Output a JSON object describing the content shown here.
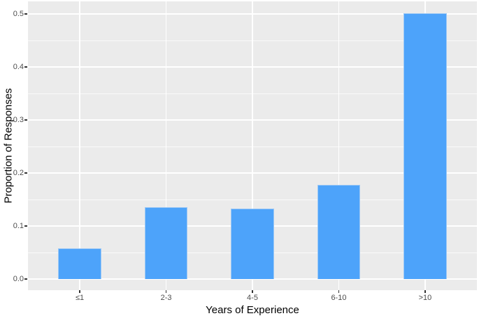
{
  "chart_data": {
    "type": "bar",
    "title": "",
    "categories": [
      "≤1",
      "2-3",
      "4-5",
      "6-10",
      ">10"
    ],
    "values": [
      0.058,
      0.135,
      0.133,
      0.178,
      0.501
    ],
    "xlabel": "Years of Experience",
    "ylabel": "Proportion of Responses",
    "ylim": [
      0,
      0.5
    ],
    "y_tick_values": [
      0,
      0.1,
      0.2,
      0.3,
      0.4,
      0.5
    ],
    "y_tick_labels": [
      "0.0",
      "0.1",
      "0.2",
      "0.3",
      "0.4",
      "0.5"
    ],
    "grid": "horizontal major + minor (0.05 steps), vertical major at category centers",
    "legend_position": "none",
    "bar_width_fraction": 0.5,
    "colors": {
      "bar": "#4da3fa",
      "bar_edge": "#9ec9f5",
      "panel_bg": "#ebebeb",
      "gridline": "#ffffff",
      "tick_mark": "#333333",
      "tick_label": "#4d4d4d",
      "axis_title": "#000000"
    }
  }
}
